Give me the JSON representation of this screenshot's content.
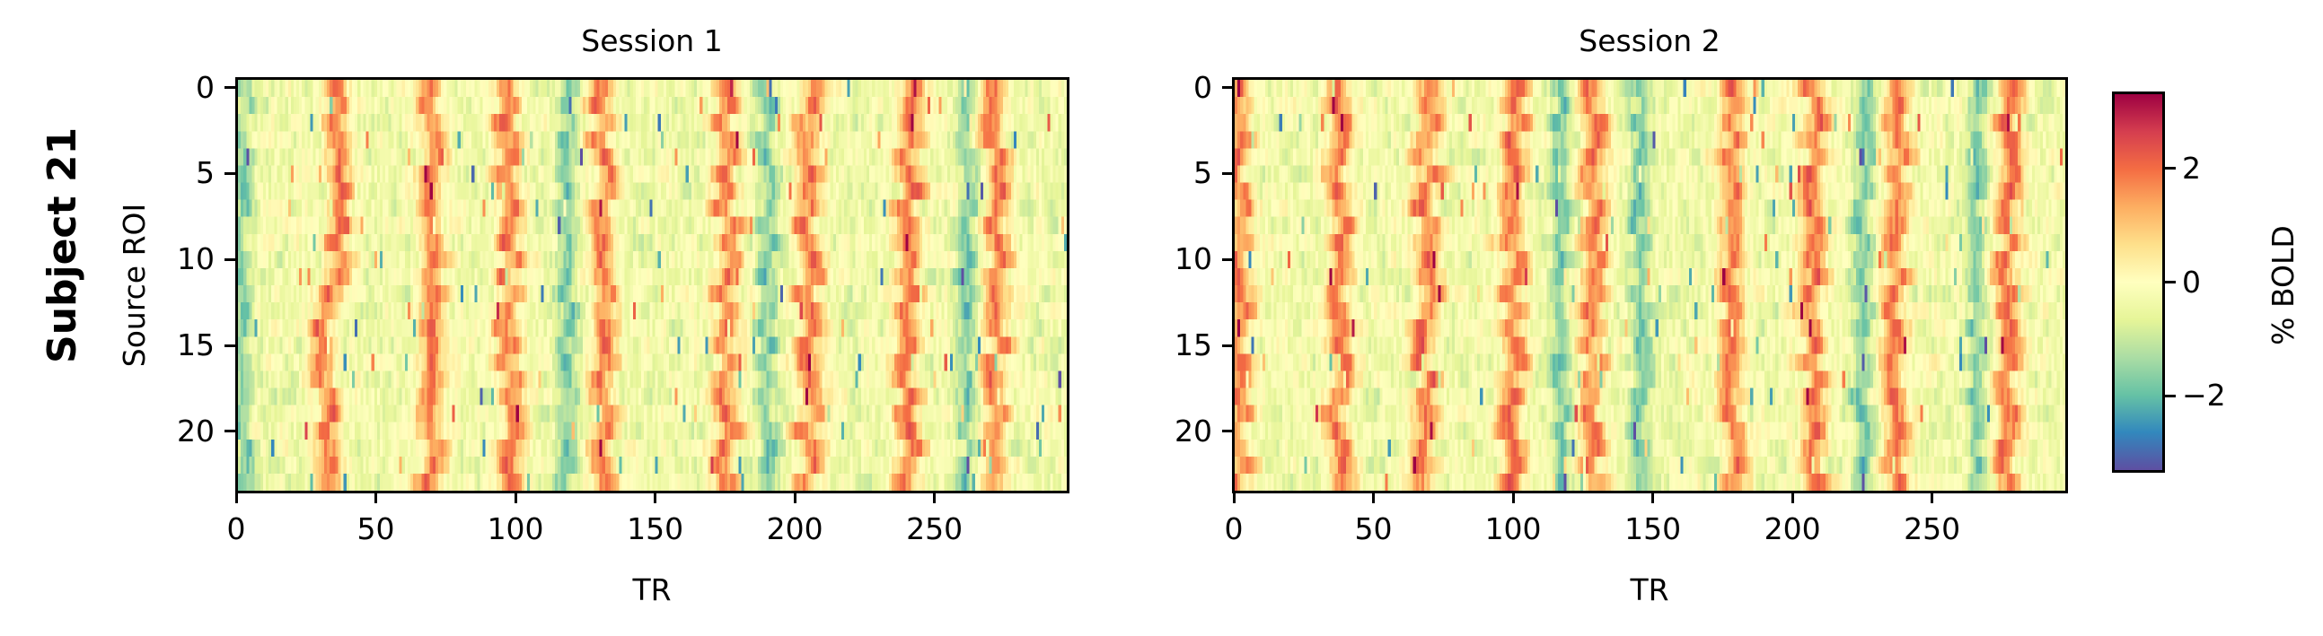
{
  "figure": {
    "suptitle": "Subject 21",
    "colorbar": {
      "label": "% BOLD",
      "ticks": [
        {
          "value": 2,
          "label": "2"
        },
        {
          "value": 0,
          "label": "0"
        },
        {
          "value": -2,
          "label": "−2"
        }
      ],
      "vmin": -3.3,
      "vmax": 3.3,
      "colormap": "Spectral_r",
      "stops": [
        "#5e4fa2",
        "#3288bd",
        "#66c2a5",
        "#abdda4",
        "#e6f598",
        "#ffffbf",
        "#fee08b",
        "#fdae61",
        "#f46d43",
        "#d53e4f",
        "#9e0142"
      ]
    }
  },
  "panels": [
    {
      "title": "Session 1",
      "ylabel": "Source ROI",
      "xlabel": "TR",
      "xticks": [
        "0",
        "50",
        "100",
        "150",
        "200",
        "250"
      ],
      "yticks": [
        "0",
        "5",
        "10",
        "15",
        "20"
      ]
    },
    {
      "title": "Session 2",
      "ylabel": "",
      "xlabel": "TR",
      "xticks": [
        "0",
        "50",
        "100",
        "150",
        "200",
        "250"
      ],
      "yticks": [
        "0",
        "5",
        "10",
        "15",
        "20"
      ]
    }
  ],
  "chart_data": {
    "type": "heatmap",
    "title": "Subject 21",
    "subplots": [
      {
        "title": "Session 1",
        "xlabel": "TR",
        "ylabel": "Source ROI",
        "x_range": [
          0,
          298
        ],
        "y_range": [
          0,
          23
        ],
        "n_rows": 24,
        "n_cols": 298,
        "xticks": [
          0,
          50,
          100,
          150,
          200,
          250
        ],
        "yticks": [
          0,
          5,
          10,
          15,
          20
        ],
        "positive_bands_TR": [
          35,
          69,
          97,
          131,
          175,
          205,
          240,
          272
        ],
        "negative_regions_TR": [
          1,
          118,
          190,
          262
        ],
        "seed": 21
      },
      {
        "title": "Session 2",
        "xlabel": "TR",
        "ylabel": "",
        "x_range": [
          0,
          298
        ],
        "y_range": [
          0,
          23
        ],
        "n_rows": 24,
        "n_cols": 298,
        "xticks": [
          0,
          50,
          100,
          150,
          200,
          250
        ],
        "yticks": [
          0,
          5,
          10,
          15,
          20
        ],
        "positive_bands_TR": [
          1,
          37,
          68,
          100,
          128,
          178,
          207,
          237,
          276
        ],
        "negative_regions_TR": [
          117,
          145,
          225,
          266
        ],
        "seed": 42
      }
    ],
    "colorbar": {
      "label": "% BOLD",
      "vmin": -3.3,
      "vmax": 3.3,
      "ticks": [
        -2,
        0,
        2
      ]
    },
    "grid": false,
    "legend": "none"
  }
}
